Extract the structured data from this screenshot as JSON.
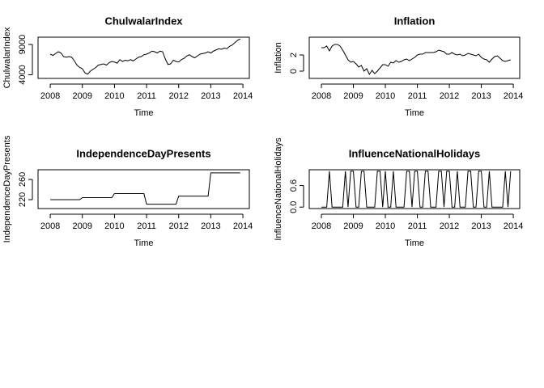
{
  "chart_data": [
    {
      "type": "line",
      "title": "ChulwalarIndex",
      "xlabel": "Time",
      "ylabel": "ChulwalarIndex",
      "color": "#000000",
      "x": [
        2008,
        2008.0833,
        2008.1667,
        2008.25,
        2008.3333,
        2008.4167,
        2008.5,
        2008.5833,
        2008.6667,
        2008.75,
        2008.8333,
        2008.9167,
        2009,
        2009.0833,
        2009.1667,
        2009.25,
        2009.3333,
        2009.4167,
        2009.5,
        2009.5833,
        2009.6667,
        2009.75,
        2009.8333,
        2009.9167,
        2010,
        2010.0833,
        2010.1667,
        2010.25,
        2010.3333,
        2010.4167,
        2010.5,
        2010.5833,
        2010.6667,
        2010.75,
        2010.8333,
        2010.9167,
        2011,
        2011.0833,
        2011.1667,
        2011.25,
        2011.3333,
        2011.4167,
        2011.5,
        2011.5833,
        2011.6667,
        2011.75,
        2011.8333,
        2011.9167,
        2012,
        2012.0833,
        2012.1667,
        2012.25,
        2012.3333,
        2012.4167,
        2012.5,
        2012.5833,
        2012.6667,
        2012.75,
        2012.8333,
        2012.9167,
        2013,
        2013.0833,
        2013.1667,
        2013.25,
        2013.3333,
        2013.4167,
        2013.5,
        2013.5833,
        2013.6667,
        2013.75,
        2013.8333,
        2013.9167
      ],
      "values": [
        7400,
        7200,
        7500,
        7800,
        7600,
        7000,
        6900,
        7000,
        6900,
        6300,
        5600,
        5200,
        5000,
        4300,
        4100,
        4600,
        4900,
        5200,
        5600,
        5700,
        5800,
        5600,
        6000,
        6200,
        6100,
        5900,
        6500,
        6200,
        6400,
        6300,
        6500,
        6300,
        6600,
        6900,
        7000,
        7300,
        7400,
        7600,
        7900,
        7800,
        7600,
        7900,
        7800,
        6600,
        5700,
        5800,
        6400,
        6200,
        6100,
        6500,
        6700,
        7100,
        7300,
        7000,
        6800,
        7100,
        7400,
        7500,
        7600,
        7800,
        7600,
        7900,
        8100,
        8300,
        8200,
        8400,
        8300,
        8700,
        8900,
        9300,
        9700,
        9900
      ],
      "xlim": [
        2007.62,
        2014.2
      ],
      "xticks": [
        2008,
        2009,
        2010,
        2011,
        2012,
        2013,
        2014
      ],
      "ylim": [
        3400,
        10200
      ],
      "yticks": [
        4000,
        9000
      ]
    },
    {
      "type": "line",
      "title": "Inflation",
      "xlabel": "Time",
      "ylabel": "Inflation",
      "color": "#000000",
      "x": [
        2008,
        2008.0833,
        2008.1667,
        2008.25,
        2008.3333,
        2008.4167,
        2008.5,
        2008.5833,
        2008.6667,
        2008.75,
        2008.8333,
        2008.9167,
        2009,
        2009.0833,
        2009.1667,
        2009.25,
        2009.3333,
        2009.4167,
        2009.5,
        2009.5833,
        2009.6667,
        2009.75,
        2009.8333,
        2009.9167,
        2010,
        2010.0833,
        2010.1667,
        2010.25,
        2010.3333,
        2010.4167,
        2010.5,
        2010.5833,
        2010.6667,
        2010.75,
        2010.8333,
        2010.9167,
        2011,
        2011.0833,
        2011.1667,
        2011.25,
        2011.3333,
        2011.4167,
        2011.5,
        2011.5833,
        2011.6667,
        2011.75,
        2011.8333,
        2011.9167,
        2012,
        2012.0833,
        2012.1667,
        2012.25,
        2012.3333,
        2012.4167,
        2012.5,
        2012.5833,
        2012.6667,
        2012.75,
        2012.8333,
        2012.9167,
        2013,
        2013.0833,
        2013.1667,
        2013.25,
        2013.3333,
        2013.4167,
        2013.5,
        2013.5833,
        2013.6667,
        2013.75,
        2013.8333,
        2013.9167
      ],
      "values": [
        2.9,
        2.9,
        3.1,
        2.5,
        3.1,
        3.3,
        3.3,
        3.1,
        2.6,
        2.0,
        1.4,
        1.1,
        1.2,
        0.9,
        0.5,
        0.7,
        0.0,
        0.3,
        -0.4,
        0.1,
        -0.3,
        0.0,
        0.4,
        0.8,
        0.8,
        0.6,
        1.1,
        1.0,
        1.3,
        1.1,
        1.2,
        1.4,
        1.5,
        1.3,
        1.5,
        1.7,
        2.0,
        2.1,
        2.1,
        2.3,
        2.3,
        2.3,
        2.3,
        2.4,
        2.6,
        2.5,
        2.4,
        2.1,
        2.1,
        2.3,
        2.1,
        2.0,
        2.1,
        1.9,
        2.0,
        2.2,
        2.1,
        2.0,
        1.9,
        2.1,
        1.7,
        1.5,
        1.4,
        1.1,
        1.5,
        1.8,
        1.9,
        1.6,
        1.3,
        1.2,
        1.3,
        1.4
      ],
      "xlim": [
        2007.62,
        2014.2
      ],
      "xticks": [
        2008,
        2009,
        2010,
        2011,
        2012,
        2013,
        2014
      ],
      "ylim": [
        -0.9,
        4.2
      ],
      "yticks": [
        0,
        2
      ]
    },
    {
      "type": "line",
      "title": "IndependenceDayPresents",
      "xlabel": "Time",
      "ylabel": "IndependenceDayPresents",
      "color": "#000000",
      "x": [
        2008,
        2008.0833,
        2008.1667,
        2008.25,
        2008.3333,
        2008.4167,
        2008.5,
        2008.5833,
        2008.6667,
        2008.75,
        2008.8333,
        2008.9167,
        2009,
        2009.0833,
        2009.1667,
        2009.25,
        2009.3333,
        2009.4167,
        2009.5,
        2009.5833,
        2009.6667,
        2009.75,
        2009.8333,
        2009.9167,
        2010,
        2010.0833,
        2010.1667,
        2010.25,
        2010.3333,
        2010.4167,
        2010.5,
        2010.5833,
        2010.6667,
        2010.75,
        2010.8333,
        2010.9167,
        2011,
        2011.0833,
        2011.1667,
        2011.25,
        2011.3333,
        2011.4167,
        2011.5,
        2011.5833,
        2011.6667,
        2011.75,
        2011.8333,
        2011.9167,
        2012,
        2012.0833,
        2012.1667,
        2012.25,
        2012.3333,
        2012.4167,
        2012.5,
        2012.5833,
        2012.6667,
        2012.75,
        2012.8333,
        2012.9167,
        2013,
        2013.0833,
        2013.1667,
        2013.25,
        2013.3333,
        2013.4167,
        2013.5,
        2013.5833,
        2013.6667,
        2013.75,
        2013.8333,
        2013.9167
      ],
      "values": [
        220,
        220,
        220,
        220,
        220,
        220,
        220,
        220,
        220,
        220,
        220,
        220,
        224,
        224,
        224,
        224,
        224,
        224,
        224,
        224,
        224,
        224,
        224,
        224,
        232,
        232,
        232,
        232,
        232,
        232,
        232,
        232,
        232,
        232,
        232,
        232,
        211,
        211,
        211,
        211,
        211,
        211,
        211,
        211,
        211,
        211,
        211,
        211,
        227,
        227,
        227,
        227,
        227,
        227,
        227,
        227,
        227,
        227,
        227,
        227,
        273,
        273,
        273,
        273,
        273,
        273,
        273,
        273,
        273,
        273,
        273,
        273
      ],
      "xlim": [
        2007.62,
        2014.2
      ],
      "xticks": [
        2008,
        2009,
        2010,
        2011,
        2012,
        2013,
        2014
      ],
      "ylim": [
        202.4,
        279.2
      ],
      "yticks": [
        220,
        260
      ]
    },
    {
      "type": "line",
      "title": "InfluenceNationalHolidays",
      "xlabel": "Time",
      "ylabel": "InfluenceNationalHolidays",
      "color": "#000000",
      "x": [
        2008,
        2008.0833,
        2008.1667,
        2008.25,
        2008.3333,
        2008.4167,
        2008.5,
        2008.5833,
        2008.6667,
        2008.75,
        2008.8333,
        2008.9167,
        2009,
        2009.0833,
        2009.1667,
        2009.25,
        2009.3333,
        2009.4167,
        2009.5,
        2009.5833,
        2009.6667,
        2009.75,
        2009.8333,
        2009.9167,
        2010,
        2010.0833,
        2010.1667,
        2010.25,
        2010.3333,
        2010.4167,
        2010.5,
        2010.5833,
        2010.6667,
        2010.75,
        2010.8333,
        2010.9167,
        2011,
        2011.0833,
        2011.1667,
        2011.25,
        2011.3333,
        2011.4167,
        2011.5,
        2011.5833,
        2011.6667,
        2011.75,
        2011.8333,
        2011.9167,
        2012,
        2012.0833,
        2012.1667,
        2012.25,
        2012.3333,
        2012.4167,
        2012.5,
        2012.5833,
        2012.6667,
        2012.75,
        2012.8333,
        2012.9167,
        2013,
        2013.0833,
        2013.1667,
        2013.25,
        2013.3333,
        2013.4167,
        2013.5,
        2013.5833,
        2013.6667,
        2013.75,
        2013.8333,
        2013.9167
      ],
      "values": [
        0,
        0,
        0,
        1,
        0,
        0,
        0,
        0,
        0,
        1,
        0,
        1,
        1,
        0,
        0,
        1,
        1,
        0,
        0,
        0,
        0,
        1,
        1,
        0,
        1,
        0,
        0,
        1,
        0,
        0,
        0,
        0,
        1,
        1,
        0,
        1,
        1,
        0,
        0,
        1,
        1,
        0,
        0,
        0,
        1,
        1,
        0,
        1,
        1,
        0,
        0,
        1,
        0,
        0,
        0,
        1,
        1,
        0,
        0,
        1,
        1,
        0,
        0,
        1,
        0,
        0,
        0,
        0,
        0,
        1,
        0,
        1
      ],
      "xlim": [
        2007.62,
        2014.2
      ],
      "xticks": [
        2008,
        2009,
        2010,
        2011,
        2012,
        2013,
        2014
      ],
      "ylim": [
        -0.04,
        1.04
      ],
      "yticks": [
        {
          "value": 0,
          "label": "0.0"
        },
        {
          "value": 0.6,
          "label": "0.6"
        }
      ]
    }
  ]
}
